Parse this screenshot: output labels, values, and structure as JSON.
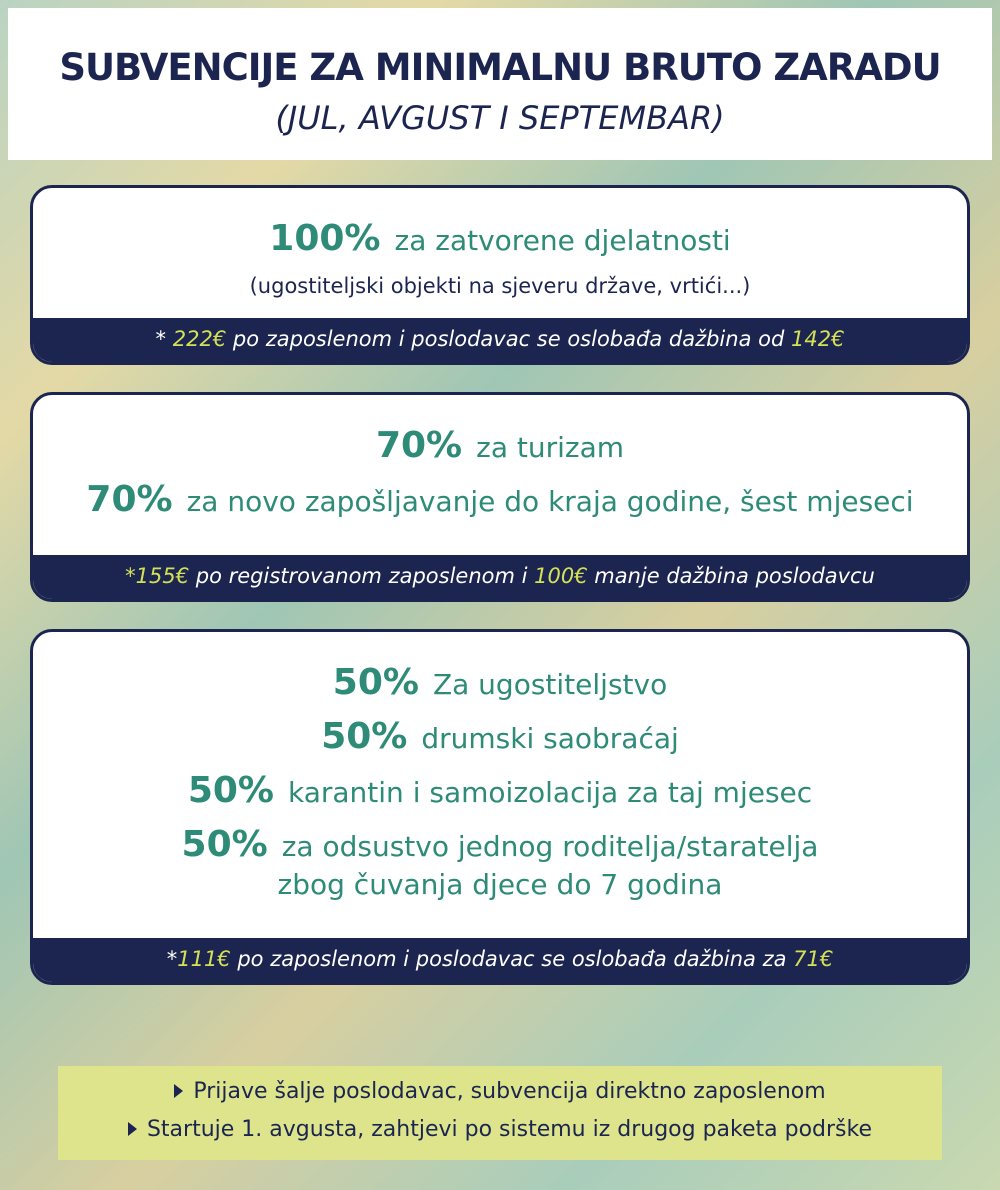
{
  "header": {
    "title": "SUBVENCIJE ZA MINIMALNU BRUTO ZARADU",
    "subtitle": "(JUL, AVGUST I SEPTEMBAR)"
  },
  "boxes": [
    {
      "rows": [
        {
          "percent": "100%",
          "text": "za zatvorene djelatnosti"
        }
      ],
      "subtext": "(ugostiteljski objekti na sjeveru države, vrtići...)",
      "note": [
        {
          "text": "* ",
          "highlight": false
        },
        {
          "text": "222€",
          "highlight": true
        },
        {
          "text": " po zaposlenom i poslodavac se oslobađa dažbina od ",
          "highlight": false
        },
        {
          "text": "142€",
          "highlight": true
        }
      ]
    },
    {
      "rows": [
        {
          "percent": "70%",
          "text": "za turizam"
        },
        {
          "percent": "70%",
          "text": "za novo zapošljavanje do kraja godine, šest mjeseci"
        }
      ],
      "note": [
        {
          "text": "*",
          "highlight": true
        },
        {
          "text": "155€",
          "highlight": true
        },
        {
          "text": " po registrovanom zaposlenom i ",
          "highlight": false
        },
        {
          "text": "100€",
          "highlight": true
        },
        {
          "text": " manje dažbina poslodavcu",
          "highlight": false
        }
      ]
    },
    {
      "rows": [
        {
          "percent": "50%",
          "text": "Za ugostiteljstvo"
        },
        {
          "percent": "50%",
          "text": "drumski saobraćaj"
        },
        {
          "percent": "50%",
          "text": "karantin i samoizolacija za taj mjesec"
        },
        {
          "percent": "50%",
          "text": "za odsustvo jednog roditelja/staratelja",
          "text2": "zbog čuvanja djece do 7 godina"
        }
      ],
      "note": [
        {
          "text": "*",
          "highlight": false
        },
        {
          "text": "111€",
          "highlight": true
        },
        {
          "text": " po zaposlenom i poslodavac se oslobađa dažbina za ",
          "highlight": false
        },
        {
          "text": "71€",
          "highlight": true
        }
      ]
    }
  ],
  "footer": [
    "Prijave šalje poslodavac, subvencija direktno zaposlenom",
    "Startuje 1. avgusta, zahtjevi po sistemu iz drugog paketa podrške"
  ]
}
